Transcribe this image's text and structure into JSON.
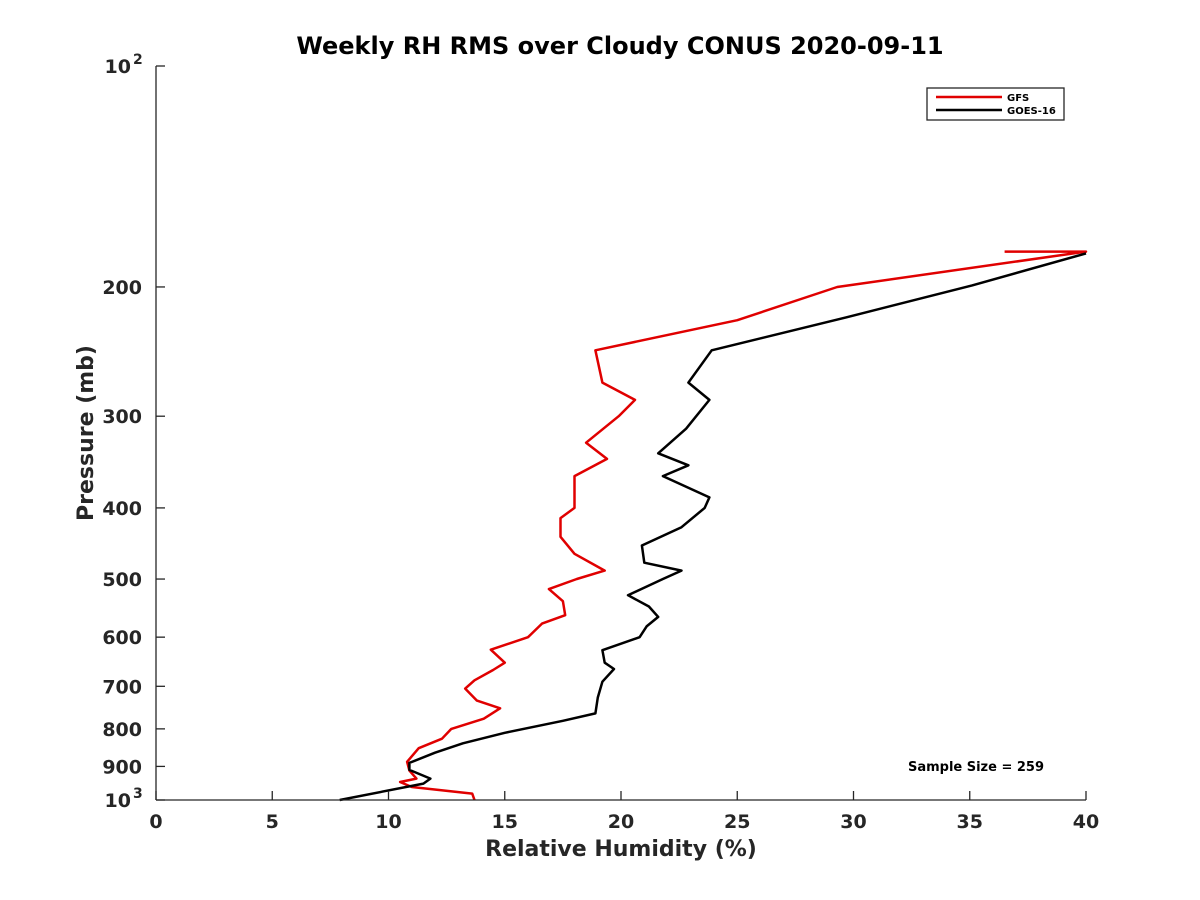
{
  "chart_data": {
    "type": "line",
    "title": "Weekly RH RMS over Cloudy CONUS 2020-09-11",
    "xlabel": "Relative Humidity (%)",
    "ylabel": "Pressure (mb)",
    "xlim": [
      0,
      40
    ],
    "ylim": [
      100,
      1000
    ],
    "y_scale": "log",
    "y_reversed": true,
    "grid": false,
    "legend_position": "top-right",
    "x_ticks": [
      0,
      5,
      10,
      15,
      20,
      25,
      30,
      35,
      40
    ],
    "y_ticks": [
      {
        "value": 100,
        "label": "10",
        "exponent": "2"
      },
      {
        "value": 200,
        "label": "200"
      },
      {
        "value": 300,
        "label": "300"
      },
      {
        "value": 400,
        "label": "400"
      },
      {
        "value": 500,
        "label": "500"
      },
      {
        "value": 600,
        "label": "600"
      },
      {
        "value": 700,
        "label": "700"
      },
      {
        "value": 800,
        "label": "800"
      },
      {
        "value": 900,
        "label": "900"
      },
      {
        "value": 1000,
        "label": "10",
        "exponent": "3"
      }
    ],
    "annotation": "Sample Size = 259",
    "series": [
      {
        "name": "GFS",
        "color": "#e00000",
        "points": [
          [
            36.5,
            179
          ],
          [
            40.0,
            179
          ],
          [
            29.3,
            200
          ],
          [
            25.0,
            222
          ],
          [
            18.9,
            244
          ],
          [
            19.2,
            270
          ],
          [
            20.6,
            285
          ],
          [
            19.9,
            300
          ],
          [
            18.5,
            326
          ],
          [
            19.4,
            343
          ],
          [
            18.0,
            362
          ],
          [
            18.0,
            400
          ],
          [
            17.4,
            413
          ],
          [
            17.4,
            438
          ],
          [
            18.0,
            462
          ],
          [
            19.3,
            487
          ],
          [
            18.1,
            500
          ],
          [
            16.9,
            516
          ],
          [
            17.5,
            536
          ],
          [
            17.6,
            560
          ],
          [
            16.6,
            575
          ],
          [
            16.0,
            600
          ],
          [
            14.4,
            624
          ],
          [
            15.0,
            650
          ],
          [
            14.5,
            665
          ],
          [
            13.7,
            687
          ],
          [
            13.3,
            705
          ],
          [
            13.8,
            732
          ],
          [
            14.8,
            750
          ],
          [
            14.1,
            775
          ],
          [
            12.7,
            800
          ],
          [
            12.3,
            825
          ],
          [
            11.3,
            850
          ],
          [
            10.8,
            887
          ],
          [
            10.9,
            912
          ],
          [
            11.2,
            935
          ],
          [
            10.5,
            945
          ],
          [
            11.0,
            960
          ],
          [
            13.6,
            980
          ],
          [
            13.7,
            1000
          ]
        ]
      },
      {
        "name": "GOES-16",
        "color": "#000000",
        "points": [
          [
            40.0,
            180
          ],
          [
            35.1,
            199
          ],
          [
            29.7,
            220
          ],
          [
            23.9,
            244
          ],
          [
            22.9,
            270
          ],
          [
            23.8,
            285
          ],
          [
            22.8,
            312
          ],
          [
            21.6,
            337
          ],
          [
            22.9,
            350
          ],
          [
            21.8,
            362
          ],
          [
            23.8,
            387
          ],
          [
            23.6,
            400
          ],
          [
            22.6,
            425
          ],
          [
            20.9,
            450
          ],
          [
            21.0,
            475
          ],
          [
            22.6,
            487
          ],
          [
            21.8,
            500
          ],
          [
            20.3,
            526
          ],
          [
            21.2,
            545
          ],
          [
            21.6,
            563
          ],
          [
            21.1,
            580
          ],
          [
            20.8,
            600
          ],
          [
            19.2,
            625
          ],
          [
            19.3,
            650
          ],
          [
            19.7,
            663
          ],
          [
            19.2,
            690
          ],
          [
            19.0,
            725
          ],
          [
            18.9,
            762
          ],
          [
            17.5,
            780
          ],
          [
            15.0,
            810
          ],
          [
            13.2,
            837
          ],
          [
            12.0,
            862
          ],
          [
            10.9,
            890
          ],
          [
            10.9,
            910
          ],
          [
            11.8,
            935
          ],
          [
            11.5,
            950
          ],
          [
            7.9,
            1000
          ]
        ]
      }
    ]
  }
}
